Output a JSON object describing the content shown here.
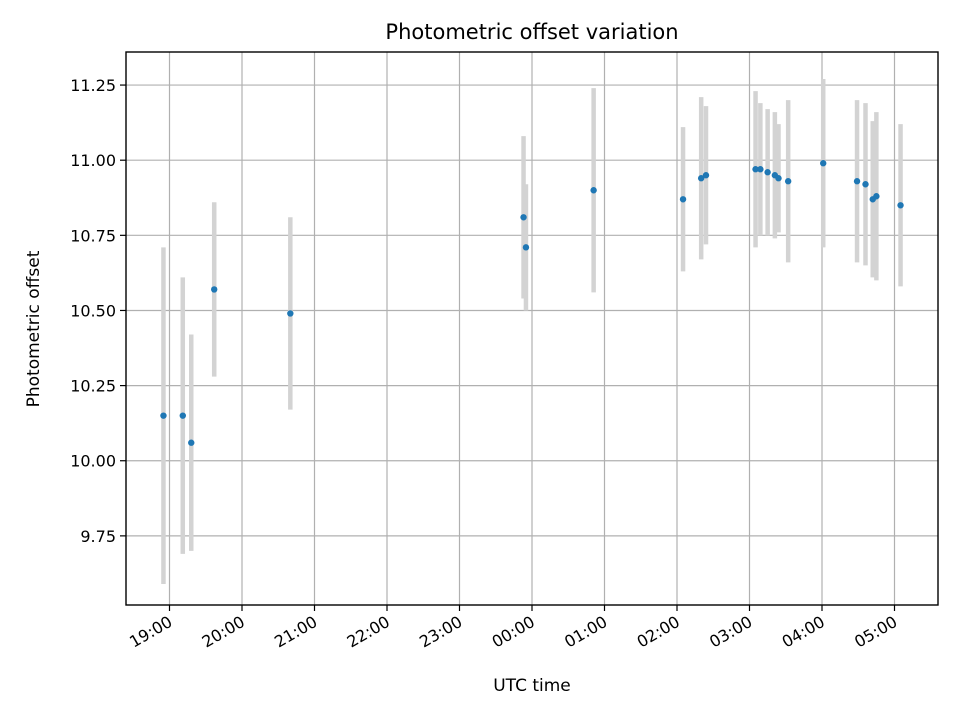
{
  "chart_data": {
    "type": "scatter",
    "title": "Photometric offset variation",
    "xlabel": "UTC time",
    "ylabel": "Photometric offset",
    "grid": true,
    "x_start": "2023-01-01T18:24",
    "x_end": "2023-01-02T05:36",
    "xticks": [
      {
        "time": "2023-01-01T19:00",
        "label": "19:00"
      },
      {
        "time": "2023-01-01T20:00",
        "label": "20:00"
      },
      {
        "time": "2023-01-01T21:00",
        "label": "21:00"
      },
      {
        "time": "2023-01-01T22:00",
        "label": "22:00"
      },
      {
        "time": "2023-01-01T23:00",
        "label": "23:00"
      },
      {
        "time": "2023-01-02T00:00",
        "label": "00:00"
      },
      {
        "time": "2023-01-02T01:00",
        "label": "01:00"
      },
      {
        "time": "2023-01-02T02:00",
        "label": "02:00"
      },
      {
        "time": "2023-01-02T03:00",
        "label": "03:00"
      },
      {
        "time": "2023-01-02T04:00",
        "label": "04:00"
      },
      {
        "time": "2023-01-02T05:00",
        "label": "05:00"
      }
    ],
    "ylim": [
      9.52,
      11.36
    ],
    "yticks": [
      {
        "value": 9.75,
        "label": "9.75"
      },
      {
        "value": 10.0,
        "label": "10.00"
      },
      {
        "value": 10.25,
        "label": "10.25"
      },
      {
        "value": 10.5,
        "label": "10.50"
      },
      {
        "value": 10.75,
        "label": "10.75"
      },
      {
        "value": 11.0,
        "label": "11.00"
      },
      {
        "value": 11.25,
        "label": "11.25"
      }
    ],
    "marker_color": "#1f77b4",
    "errorbar_color": "#d3d3d3",
    "points": [
      {
        "time": "2023-01-01T18:55",
        "y": 10.15,
        "err": 0.56
      },
      {
        "time": "2023-01-01T19:11",
        "y": 10.15,
        "err": 0.46
      },
      {
        "time": "2023-01-01T19:18",
        "y": 10.06,
        "err": 0.36
      },
      {
        "time": "2023-01-01T19:37",
        "y": 10.57,
        "err": 0.29
      },
      {
        "time": "2023-01-01T20:40",
        "y": 10.49,
        "err": 0.32
      },
      {
        "time": "2023-01-01T23:53",
        "y": 10.81,
        "err": 0.27
      },
      {
        "time": "2023-01-01T23:55",
        "y": 10.71,
        "err": 0.21
      },
      {
        "time": "2023-01-02T00:51",
        "y": 10.9,
        "err": 0.34
      },
      {
        "time": "2023-01-02T02:05",
        "y": 10.87,
        "err": 0.24
      },
      {
        "time": "2023-01-02T02:20",
        "y": 10.94,
        "err": 0.27
      },
      {
        "time": "2023-01-02T02:24",
        "y": 10.95,
        "err": 0.23
      },
      {
        "time": "2023-01-02T03:05",
        "y": 10.97,
        "err": 0.26
      },
      {
        "time": "2023-01-02T03:09",
        "y": 10.97,
        "err": 0.22
      },
      {
        "time": "2023-01-02T03:15",
        "y": 10.96,
        "err": 0.21
      },
      {
        "time": "2023-01-02T03:21",
        "y": 10.95,
        "err": 0.21
      },
      {
        "time": "2023-01-02T03:24",
        "y": 10.94,
        "err": 0.18
      },
      {
        "time": "2023-01-02T03:32",
        "y": 10.93,
        "err": 0.27
      },
      {
        "time": "2023-01-02T04:01",
        "y": 10.99,
        "err": 0.28
      },
      {
        "time": "2023-01-02T04:29",
        "y": 10.93,
        "err": 0.27
      },
      {
        "time": "2023-01-02T04:36",
        "y": 10.92,
        "err": 0.27
      },
      {
        "time": "2023-01-02T04:42",
        "y": 10.87,
        "err": 0.26
      },
      {
        "time": "2023-01-02T04:45",
        "y": 10.88,
        "err": 0.28
      },
      {
        "time": "2023-01-02T05:05",
        "y": 10.85,
        "err": 0.27
      }
    ]
  }
}
